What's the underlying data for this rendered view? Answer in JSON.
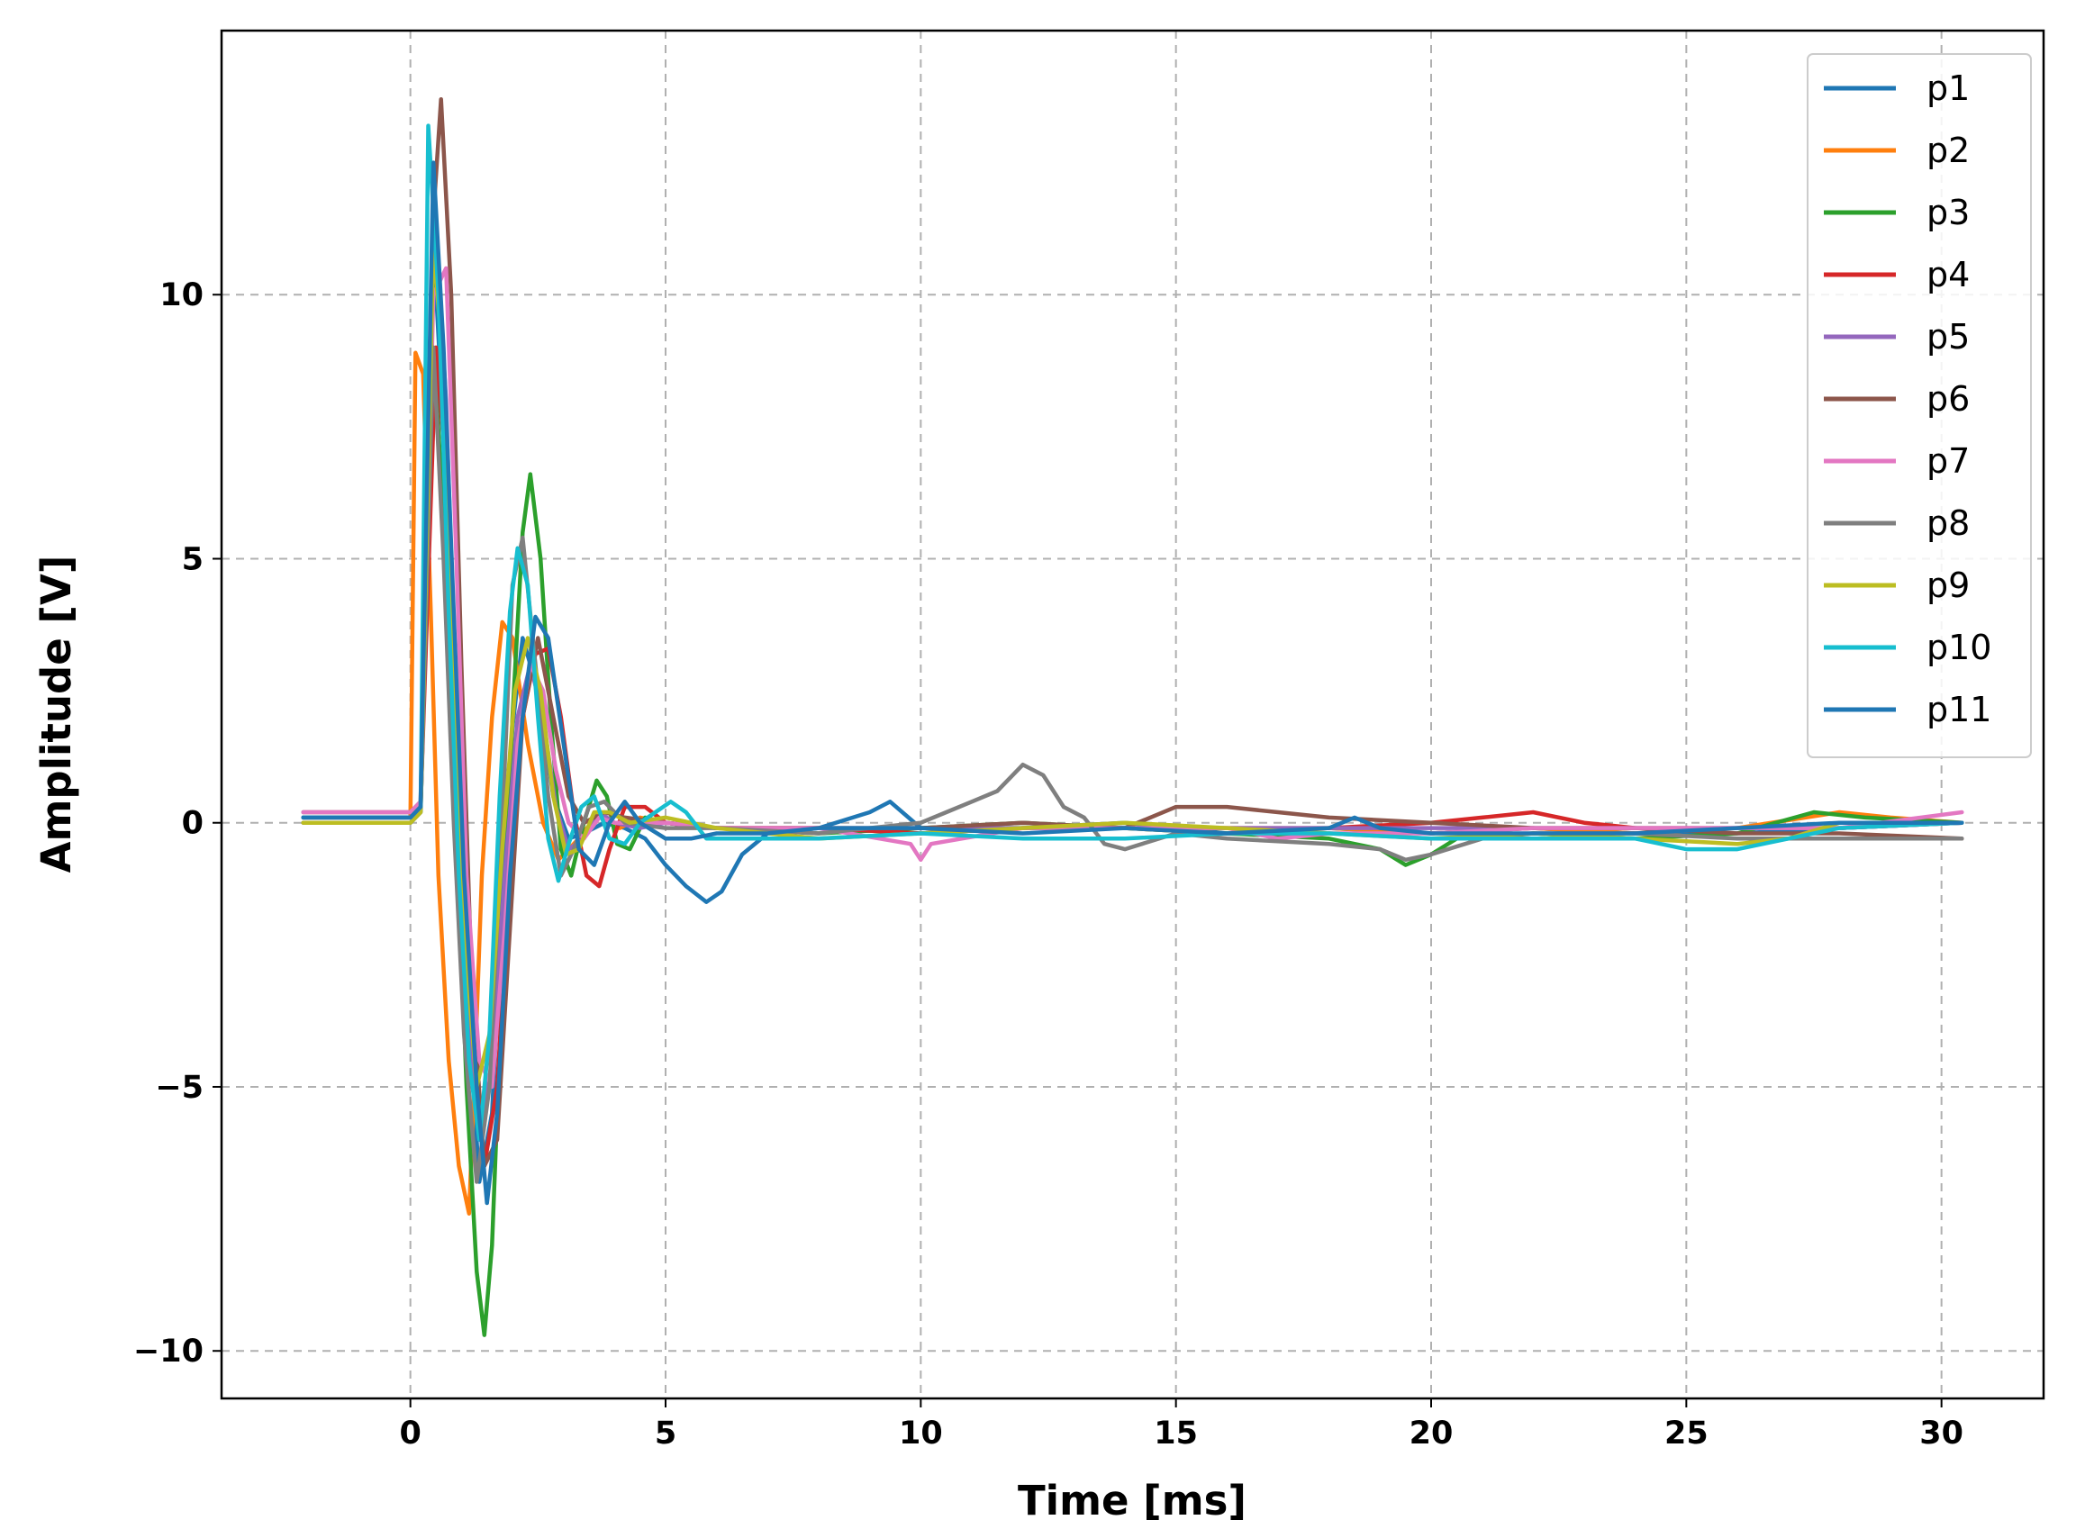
{
  "chart_data": {
    "type": "line",
    "title": "",
    "xlabel": "Time [ms]",
    "ylabel": "Amplitude [V]",
    "xlim": [
      -3.7,
      32.0
    ],
    "ylim": [
      -10.9,
      15.0
    ],
    "xticks": [
      0,
      5,
      10,
      15,
      20,
      25,
      30
    ],
    "yticks": [
      -10,
      -5,
      0,
      5,
      10
    ],
    "xtick_labels": [
      "0",
      "5",
      "10",
      "15",
      "20",
      "25",
      "30"
    ],
    "ytick_labels": [
      "−10",
      "−5",
      "0",
      "5",
      "10"
    ],
    "grid": true,
    "legend_position": "top-right",
    "series": [
      {
        "name": "p1",
        "color": "#1f77b4",
        "x": [
          -2.1,
          0.0,
          0.2,
          0.45,
          0.7,
          0.9,
          1.1,
          1.35,
          1.6,
          1.8,
          2.0,
          2.2,
          2.5,
          2.8,
          3.1,
          3.4,
          3.8,
          4.2,
          4.6,
          5.0,
          5.4,
          5.8,
          6.1,
          6.5,
          7.0,
          8.0,
          9.0,
          9.4,
          10.0,
          12.0,
          14.0,
          16.0,
          18.0,
          20.0,
          22.0,
          24.0,
          26.0,
          28.0,
          30.4
        ],
        "y": [
          0.1,
          0.1,
          0.3,
          11.0,
          6.5,
          2.0,
          -3.0,
          -6.8,
          -5.5,
          -1.5,
          1.8,
          3.5,
          2.5,
          0.5,
          -0.3,
          -0.2,
          0.0,
          -0.1,
          -0.3,
          -0.8,
          -1.2,
          -1.5,
          -1.3,
          -0.6,
          -0.2,
          -0.1,
          0.2,
          0.4,
          -0.1,
          -0.1,
          0.0,
          -0.2,
          -0.1,
          -0.2,
          -0.1,
          -0.2,
          -0.2,
          -0.1,
          0.0
        ]
      },
      {
        "name": "p2",
        "color": "#ff7f0e",
        "x": [
          -2.1,
          0.0,
          0.1,
          0.25,
          0.4,
          0.55,
          0.75,
          0.95,
          1.15,
          1.25,
          1.4,
          1.6,
          1.8,
          2.0,
          2.3,
          2.6,
          2.9,
          3.3,
          3.7,
          4.1,
          4.5,
          5.0,
          6.0,
          8.0,
          10.0,
          12.0,
          14.0,
          16.0,
          18.0,
          20.0,
          22.0,
          24.0,
          26.0,
          28.0,
          29.0,
          30.4
        ],
        "y": [
          0.1,
          0.1,
          8.9,
          8.5,
          4.0,
          -1.0,
          -4.5,
          -6.5,
          -7.4,
          -5.0,
          -1.0,
          2.0,
          3.8,
          3.5,
          1.5,
          0.0,
          -0.7,
          -0.3,
          0.2,
          -0.1,
          0.1,
          0.0,
          -0.1,
          -0.1,
          -0.2,
          -0.1,
          -0.1,
          -0.2,
          -0.1,
          -0.2,
          -0.1,
          -0.2,
          -0.1,
          0.2,
          0.1,
          0.0
        ]
      },
      {
        "name": "p3",
        "color": "#2ca02c",
        "x": [
          -2.1,
          0.0,
          0.2,
          0.45,
          0.7,
          0.9,
          1.1,
          1.3,
          1.45,
          1.6,
          1.8,
          2.0,
          2.2,
          2.35,
          2.55,
          2.75,
          2.95,
          3.15,
          3.4,
          3.65,
          3.85,
          4.05,
          4.3,
          4.6,
          5.0,
          6.0,
          8.0,
          10.0,
          12.0,
          14.0,
          16.0,
          18.0,
          19.0,
          19.5,
          20.0,
          20.5,
          22.0,
          24.0,
          26.0,
          27.5,
          28.5,
          30.4
        ],
        "y": [
          0.0,
          0.0,
          0.2,
          9.0,
          5.0,
          0.0,
          -5.0,
          -8.5,
          -9.7,
          -8.0,
          -3.0,
          2.0,
          5.5,
          6.6,
          5.0,
          2.0,
          -0.5,
          -1.0,
          0.0,
          0.8,
          0.5,
          -0.4,
          -0.5,
          0.1,
          0.0,
          -0.1,
          -0.2,
          -0.1,
          0.0,
          -0.1,
          -0.2,
          -0.3,
          -0.5,
          -0.8,
          -0.6,
          -0.3,
          -0.2,
          -0.3,
          -0.2,
          0.2,
          0.1,
          0.0
        ]
      },
      {
        "name": "p4",
        "color": "#d62728",
        "x": [
          -2.1,
          0.0,
          0.2,
          0.5,
          0.75,
          0.95,
          1.2,
          1.45,
          1.7,
          1.95,
          2.2,
          2.45,
          2.7,
          2.95,
          3.2,
          3.45,
          3.7,
          3.9,
          4.2,
          4.6,
          5.0,
          6.0,
          8.0,
          10.0,
          12.0,
          14.0,
          16.0,
          18.0,
          20.0,
          21.0,
          22.0,
          23.0,
          24.0,
          26.0,
          28.0,
          30.4
        ],
        "y": [
          0.1,
          0.1,
          0.3,
          9.0,
          6.0,
          1.0,
          -4.0,
          -6.5,
          -5.0,
          -1.0,
          2.0,
          3.2,
          3.3,
          2.0,
          0.2,
          -1.0,
          -1.2,
          -0.5,
          0.3,
          0.3,
          0.0,
          -0.1,
          -0.1,
          -0.2,
          -0.1,
          -0.1,
          -0.1,
          -0.1,
          0.0,
          0.1,
          0.2,
          0.0,
          -0.1,
          -0.1,
          -0.1,
          0.0
        ]
      },
      {
        "name": "p5",
        "color": "#9467bd",
        "x": [
          -2.1,
          0.0,
          0.2,
          0.45,
          0.7,
          0.9,
          1.1,
          1.35,
          1.6,
          1.85,
          2.1,
          2.35,
          2.6,
          2.85,
          3.1,
          3.4,
          3.7,
          4.0,
          4.5,
          5.0,
          6.0,
          8.0,
          10.0,
          12.0,
          14.0,
          16.0,
          18.0,
          20.0,
          22.0,
          24.0,
          26.0,
          28.0,
          30.4
        ],
        "y": [
          0.1,
          0.1,
          0.3,
          12.0,
          8.0,
          2.0,
          -3.0,
          -6.0,
          -4.5,
          -1.0,
          2.0,
          3.0,
          2.0,
          0.3,
          -0.5,
          -0.3,
          0.2,
          0.0,
          -0.1,
          0.0,
          -0.1,
          -0.1,
          -0.1,
          -0.1,
          -0.1,
          -0.1,
          -0.1,
          -0.1,
          -0.1,
          -0.1,
          -0.1,
          -0.1,
          0.0
        ]
      },
      {
        "name": "p6",
        "color": "#8c564b",
        "x": [
          -2.1,
          0.0,
          0.2,
          0.45,
          0.6,
          0.8,
          1.0,
          1.2,
          1.45,
          1.7,
          1.95,
          2.2,
          2.5,
          2.8,
          3.1,
          3.4,
          3.8,
          4.2,
          5.0,
          6.0,
          8.0,
          10.0,
          12.0,
          14.0,
          15.0,
          16.0,
          17.0,
          18.0,
          20.0,
          22.0,
          24.0,
          26.0,
          28.0,
          30.4
        ],
        "y": [
          0.2,
          0.2,
          0.4,
          11.5,
          13.7,
          10.0,
          3.0,
          -3.0,
          -6.5,
          -6.0,
          -2.0,
          2.0,
          3.5,
          2.0,
          0.5,
          0.0,
          0.2,
          0.1,
          0.0,
          -0.1,
          -0.1,
          -0.1,
          0.0,
          -0.1,
          0.3,
          0.3,
          0.2,
          0.1,
          0.0,
          -0.1,
          -0.1,
          -0.2,
          -0.2,
          -0.3
        ]
      },
      {
        "name": "p7",
        "color": "#e377c2",
        "x": [
          -2.1,
          0.0,
          0.2,
          0.45,
          0.7,
          0.9,
          1.1,
          1.35,
          1.6,
          1.85,
          2.1,
          2.35,
          2.6,
          2.85,
          3.1,
          3.4,
          3.7,
          4.0,
          5.0,
          6.0,
          8.0,
          9.8,
          10.0,
          10.2,
          12.0,
          14.0,
          16.0,
          17.0,
          18.0,
          20.0,
          22.0,
          24.0,
          26.0,
          28.0,
          30.4
        ],
        "y": [
          0.2,
          0.2,
          0.4,
          10.0,
          10.5,
          5.0,
          -1.0,
          -4.5,
          -5.0,
          -2.0,
          1.5,
          3.0,
          2.5,
          1.0,
          0.0,
          -0.3,
          0.1,
          0.0,
          0.0,
          -0.1,
          -0.1,
          -0.4,
          -0.7,
          -0.4,
          -0.1,
          -0.1,
          -0.1,
          -0.3,
          -0.2,
          -0.2,
          -0.1,
          -0.1,
          -0.1,
          -0.1,
          0.2
        ]
      },
      {
        "name": "p8",
        "color": "#7f7f7f",
        "x": [
          -2.1,
          0.0,
          0.2,
          0.45,
          0.65,
          0.85,
          1.05,
          1.3,
          1.55,
          1.8,
          2.0,
          2.2,
          2.45,
          2.7,
          2.95,
          3.2,
          3.5,
          3.8,
          4.2,
          5.0,
          6.0,
          8.0,
          10.0,
          10.5,
          11.0,
          11.5,
          12.0,
          12.4,
          12.8,
          13.2,
          13.6,
          14.0,
          15.0,
          16.0,
          18.0,
          19.0,
          19.5,
          20.0,
          21.0,
          22.0,
          24.0,
          26.0,
          28.0,
          30.4
        ],
        "y": [
          0.0,
          0.0,
          0.2,
          9.0,
          5.0,
          0.0,
          -4.0,
          -6.8,
          -5.0,
          0.0,
          4.5,
          5.4,
          3.0,
          0.5,
          -1.0,
          -0.5,
          0.3,
          0.4,
          0.0,
          -0.1,
          -0.1,
          -0.2,
          0.0,
          0.2,
          0.4,
          0.6,
          1.1,
          0.9,
          0.3,
          0.1,
          -0.4,
          -0.5,
          -0.2,
          -0.3,
          -0.4,
          -0.5,
          -0.7,
          -0.6,
          -0.3,
          -0.2,
          -0.2,
          -0.3,
          -0.3,
          -0.3
        ]
      },
      {
        "name": "p9",
        "color": "#bcbd22",
        "x": [
          -2.1,
          0.0,
          0.2,
          0.45,
          0.65,
          0.85,
          1.05,
          1.3,
          1.55,
          1.8,
          2.05,
          2.3,
          2.55,
          2.8,
          3.05,
          3.3,
          3.6,
          3.9,
          4.3,
          5.0,
          6.0,
          8.0,
          10.0,
          12.0,
          14.0,
          16.0,
          18.0,
          20.0,
          22.0,
          24.0,
          26.0,
          27.0,
          28.0,
          30.4
        ],
        "y": [
          0.0,
          0.0,
          0.2,
          11.0,
          8.5,
          3.0,
          -2.0,
          -5.0,
          -4.0,
          -0.5,
          2.5,
          3.5,
          2.5,
          0.5,
          -0.6,
          -0.5,
          0.2,
          0.2,
          0.0,
          0.1,
          -0.1,
          -0.3,
          -0.2,
          -0.1,
          0.0,
          -0.1,
          -0.2,
          -0.3,
          -0.2,
          -0.3,
          -0.4,
          -0.3,
          0.0,
          0.0
        ]
      },
      {
        "name": "p10",
        "color": "#17becf",
        "x": [
          -2.1,
          0.0,
          0.2,
          0.35,
          0.55,
          0.75,
          0.95,
          1.15,
          1.35,
          1.55,
          1.75,
          1.95,
          2.1,
          2.3,
          2.5,
          2.7,
          2.9,
          3.1,
          3.35,
          3.6,
          3.9,
          4.2,
          4.5,
          4.8,
          5.1,
          5.4,
          5.8,
          6.5,
          8.0,
          10.0,
          12.0,
          14.0,
          16.0,
          18.0,
          20.0,
          22.0,
          24.0,
          25.0,
          26.0,
          27.0,
          28.0,
          30.4
        ],
        "y": [
          0.1,
          0.1,
          0.3,
          13.2,
          10.0,
          4.0,
          -1.0,
          -4.5,
          -6.0,
          -4.0,
          0.5,
          4.0,
          5.2,
          4.5,
          2.0,
          -0.3,
          -1.1,
          -0.4,
          0.3,
          0.5,
          -0.3,
          -0.4,
          0.0,
          0.2,
          0.4,
          0.2,
          -0.3,
          -0.3,
          -0.3,
          -0.2,
          -0.3,
          -0.3,
          -0.2,
          -0.2,
          -0.3,
          -0.3,
          -0.3,
          -0.5,
          -0.5,
          -0.3,
          -0.1,
          0.0
        ]
      },
      {
        "name": "p11",
        "color": "#1f77b4",
        "x": [
          -2.1,
          0.0,
          0.2,
          0.45,
          0.65,
          0.85,
          1.05,
          1.3,
          1.5,
          1.7,
          1.95,
          2.2,
          2.45,
          2.7,
          3.0,
          3.3,
          3.6,
          3.9,
          4.2,
          4.5,
          5.0,
          5.5,
          6.0,
          7.0,
          8.0,
          10.0,
          12.0,
          14.0,
          16.0,
          18.0,
          18.5,
          19.0,
          20.0,
          22.0,
          24.0,
          26.0,
          28.0,
          30.4
        ],
        "y": [
          0.1,
          0.1,
          0.3,
          12.5,
          9.0,
          4.0,
          -1.0,
          -5.0,
          -7.2,
          -5.5,
          -1.0,
          2.0,
          3.9,
          3.5,
          1.5,
          -0.5,
          -0.8,
          0.0,
          0.4,
          0.0,
          -0.3,
          -0.3,
          -0.2,
          -0.2,
          -0.1,
          -0.1,
          -0.2,
          -0.1,
          -0.2,
          -0.1,
          0.1,
          -0.1,
          -0.2,
          -0.2,
          -0.2,
          -0.1,
          0.0,
          0.0
        ]
      }
    ]
  }
}
